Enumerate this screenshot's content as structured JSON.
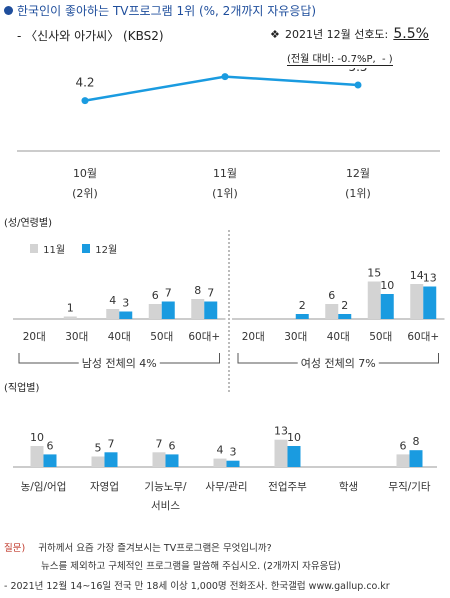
{
  "header": {
    "title_main": "한국인이 좋아하는 TV프로그램 1위",
    "title_note": "(%, 2개까지 자유응답)",
    "subtitle": "- 〈신사와 아가씨〉 (KBS2)",
    "pref_bullet": "❖",
    "pref_label": "2021년 12월 선호도:",
    "pref_value": "5.5%",
    "change_text": "(전월 대비: -0.7%P,  - )"
  },
  "sections": {
    "gender_age": "(성/연령별)",
    "occupation": "(직업별)"
  },
  "legend": {
    "s1": "11월",
    "s2": "12월"
  },
  "colors": {
    "s1": "#d3d3d3",
    "s2": "#1a9be0",
    "line": "#1a9be0",
    "title": "#1f4e9c"
  },
  "footer": {
    "q_label": "질문)",
    "q_line1": "귀하께서 요즘 가장 즐겨보시는 TV프로그램은 무엇입니까?",
    "q_line2": "뉴스를 제외하고 구체적인 프로그램을 말씀해 주십시오. (2개까지 자유응답)",
    "source": "- 2021년 12월 14~16일 전국 만 18세 이상 1,000명 전화조사. 한국갤럽 www.gallup.co.kr"
  },
  "chart_data": [
    {
      "type": "line",
      "x": [
        "10월",
        "11월",
        "12월"
      ],
      "x_sub": [
        "(2위)",
        "(1위)",
        "(1위)"
      ],
      "values": [
        4.2,
        6.2,
        5.5
      ],
      "ylim": [
        0,
        10
      ]
    },
    {
      "type": "bar",
      "groups": [
        {
          "label": "남성 전체의 4%",
          "categories": [
            "20대",
            "30대",
            "40대",
            "50대",
            "60대+"
          ],
          "s1": [
            null,
            1,
            4,
            6,
            8
          ],
          "s2": [
            null,
            null,
            3,
            7,
            7
          ]
        },
        {
          "label": "여성 전체의 7%",
          "categories": [
            "20대",
            "30대",
            "40대",
            "50대",
            "60대+"
          ],
          "s1": [
            null,
            null,
            6,
            15,
            14
          ],
          "s2": [
            null,
            2,
            2,
            10,
            13
          ]
        }
      ],
      "ylim": [
        0,
        20
      ]
    },
    {
      "type": "bar",
      "categories": [
        "농/임/어업",
        "자영업",
        "기능노무/\n서비스",
        "사무/관리",
        "전업주부",
        "학생",
        "무직/기타"
      ],
      "s1": [
        10,
        5,
        7,
        4,
        13,
        null,
        6
      ],
      "s2": [
        6,
        7,
        6,
        3,
        10,
        null,
        8
      ],
      "ylim": [
        0,
        20
      ]
    }
  ]
}
